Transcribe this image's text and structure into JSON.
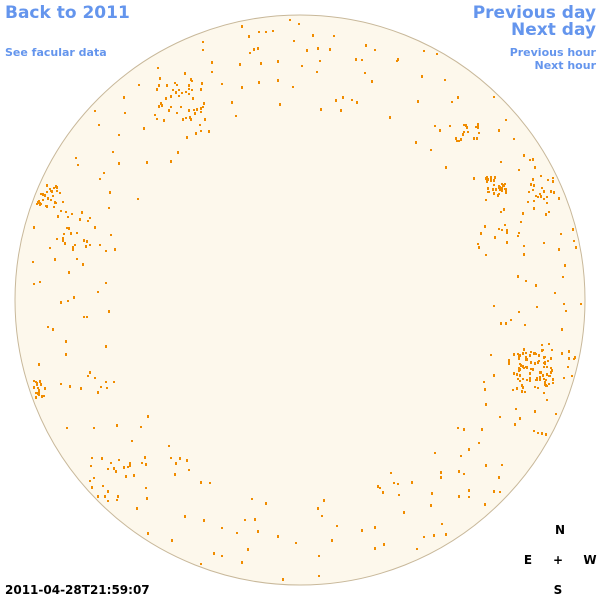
{
  "nav": {
    "back": "Back to 2011",
    "facular_link": "See facular data",
    "previous_day": "Previous day",
    "next_day": "Next day",
    "previous_hour": "Previous hour",
    "next_hour": "Next hour"
  },
  "timestamp": "2011-04-28T21:59:07",
  "compass": {
    "north": "N",
    "east": "E",
    "center": "+",
    "west": "W",
    "south": "S"
  }
}
